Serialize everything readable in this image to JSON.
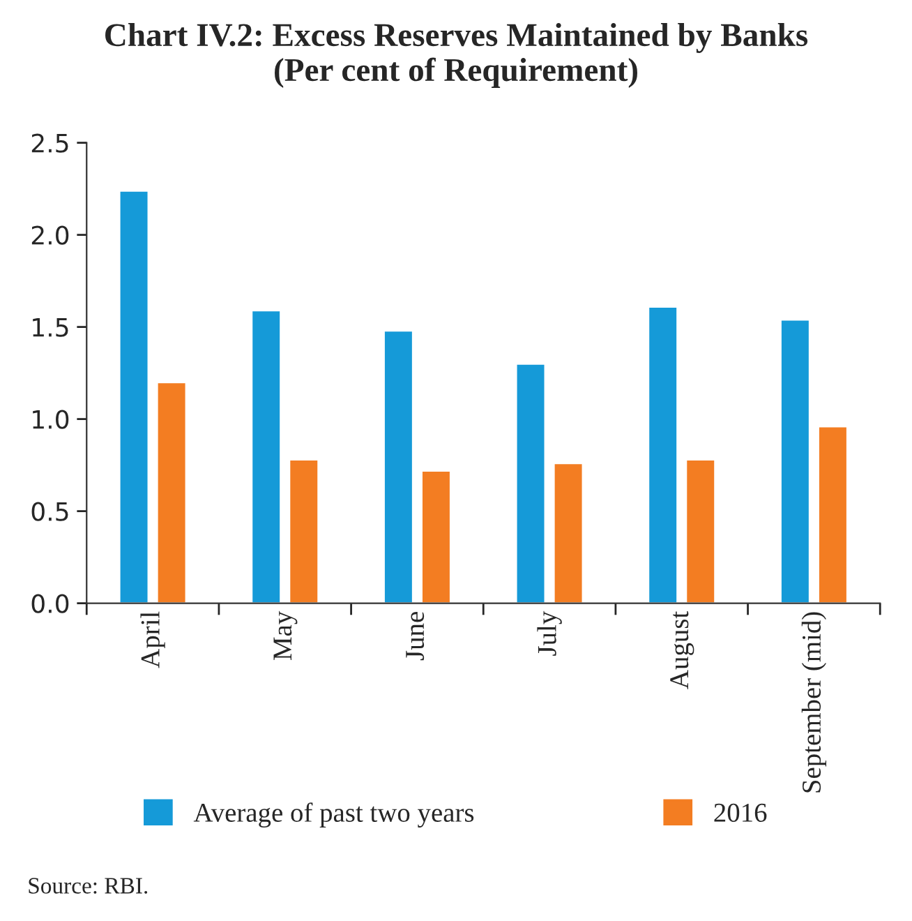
{
  "chart_data": {
    "type": "bar",
    "title": "Chart IV.2: Excess Reserves Maintained by Banks\n(Per cent of Requirement)",
    "categories": [
      "April",
      "May",
      "June",
      "July",
      "August",
      "September (mid)"
    ],
    "series": [
      {
        "name": "Average of past two years",
        "color": "#159ad8",
        "values": [
          2.24,
          1.59,
          1.48,
          1.3,
          1.61,
          1.54
        ]
      },
      {
        "name": "2016",
        "color": "#f37d22",
        "values": [
          1.2,
          0.78,
          0.72,
          0.76,
          0.78,
          0.96
        ]
      }
    ],
    "ylim": [
      0,
      2.5
    ],
    "yticks": [
      {
        "value": 0,
        "label": "0.0"
      },
      {
        "value": 0.5,
        "label": "0.5"
      },
      {
        "value": 1,
        "label": "1.0"
      },
      {
        "value": 1.5,
        "label": "1.5"
      },
      {
        "value": 2,
        "label": "2.0"
      },
      {
        "value": 2.5,
        "label": "2.5"
      }
    ],
    "grid": false,
    "legend": "bottom",
    "annotations": [
      "Source: RBI."
    ]
  }
}
